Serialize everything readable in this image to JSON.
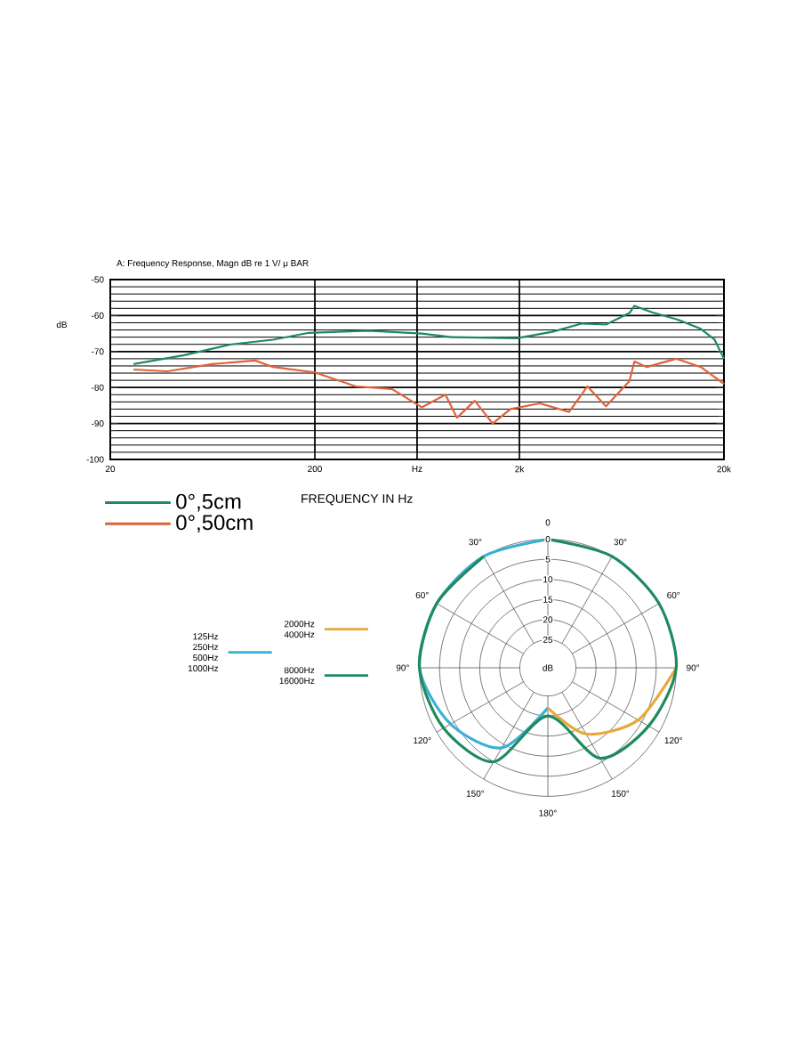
{
  "chart_data": [
    {
      "type": "line",
      "title": "A: Frequency Response, Magn dB re 1 V/ μ BAR",
      "xlabel": "FREQUENCY IN Hz",
      "ylabel": "dB",
      "log": "x",
      "xlim": [
        20,
        20000
      ],
      "xticks": [
        20,
        200,
        {
          "value": 632,
          "label": "Hz"
        },
        {
          "value": 2000,
          "label": "2k"
        },
        {
          "value": 20000,
          "label": "20k"
        }
      ],
      "ylim": [
        -100,
        -50
      ],
      "yticks": [
        -100,
        -90,
        -80,
        -70,
        -60,
        -50
      ],
      "grid": true,
      "legend": "bottom left",
      "marker": "none",
      "line_style": "solid",
      "series": [
        {
          "name": "0°,5cm",
          "color": "#1f8a5e",
          "x": [
            26,
            46,
            78,
            125,
            187,
            363,
            666,
            929,
            1940,
            2900,
            4050,
            5300,
            6900,
            7300,
            8900,
            11700,
            15400,
            18000,
            20000
          ],
          "values": [
            -73.5,
            -71,
            -68,
            -66.7,
            -64.8,
            -64.2,
            -65,
            -66,
            -66.3,
            -64.5,
            -62.2,
            -62.5,
            -59.3,
            -57.3,
            -59.1,
            -61,
            -63.7,
            -66.7,
            -72
          ]
        },
        {
          "name": "0°,50cm",
          "color": "#e0623a",
          "x": [
            26,
            38,
            63,
            102,
            125,
            200,
            318,
            476,
            666,
            870,
            990,
            1210,
            1480,
            1810,
            2520,
            3500,
            4300,
            5300,
            6900,
            7300,
            8400,
            11700,
            15400,
            20000
          ],
          "values": [
            -75,
            -75.5,
            -73.5,
            -72.5,
            -74.3,
            -75.8,
            -79.7,
            -80.4,
            -85.5,
            -82,
            -88.4,
            -83.7,
            -90,
            -86,
            -84.4,
            -86.8,
            -79.7,
            -85.2,
            -78.2,
            -72.8,
            -74.3,
            -72,
            -74.3,
            -79
          ]
        }
      ]
    },
    {
      "type": "radar",
      "categories": [
        "0",
        "30°",
        "60°",
        "90°",
        "120°",
        "150°",
        "180°",
        "150°",
        "120°",
        "90°",
        "60°",
        "30°"
      ],
      "ylabel": "dB",
      "ylim": [
        32,
        0
      ],
      "yticks": [
        0,
        5,
        10,
        15,
        20,
        25
      ],
      "grid": true,
      "legend": "left",
      "marker": "none",
      "line_style": "solid",
      "series": [
        {
          "name": "125Hz 250Hz 500Hz 1000Hz",
          "color": "#3bb0d6",
          "values": [
            0,
            null,
            null,
            null,
            null,
            null,
            22,
            9,
            4,
            0,
            0,
            0
          ]
        },
        {
          "name": "2000Hz 4000Hz",
          "color": "#e8a93a",
          "values": [
            null,
            null,
            null,
            0,
            6,
            13,
            22,
            null,
            null,
            null,
            null,
            null
          ]
        },
        {
          "name": "8000Hz 16000Hz",
          "color": "#1f8a5e",
          "values": [
            0,
            0,
            0,
            0,
            3,
            6,
            20,
            5,
            2,
            0,
            0,
            0
          ]
        }
      ]
    }
  ]
}
